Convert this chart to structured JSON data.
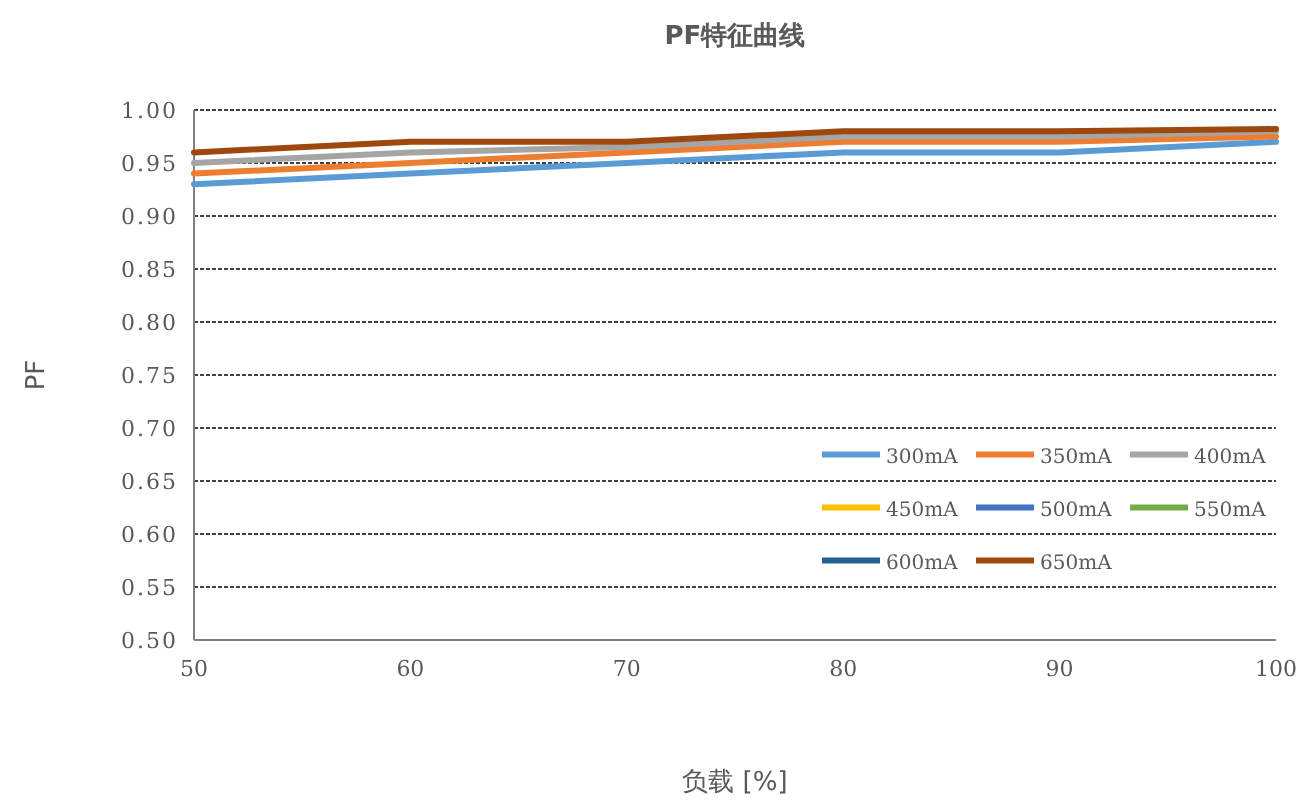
{
  "chart_data": {
    "type": "line",
    "title": "PF特征曲线",
    "xlabel": "负载 [%]",
    "ylabel": "PF",
    "x": [
      50,
      60,
      70,
      80,
      90,
      100
    ],
    "series": [
      {
        "name": "300mA",
        "color": "#5b9bd5",
        "values": [
          0.93,
          0.94,
          0.95,
          0.96,
          0.96,
          0.97
        ]
      },
      {
        "name": "350mA",
        "color": "#ed7d31",
        "values": [
          0.94,
          0.95,
          0.96,
          0.97,
          0.97,
          0.975
        ]
      },
      {
        "name": "400mA",
        "color": "#a5a5a5",
        "values": [
          0.95,
          0.96,
          0.965,
          0.975,
          0.975,
          0.98
        ]
      },
      {
        "name": "450mA",
        "color": "#ffc000",
        "values": [
          null,
          null,
          null,
          null,
          null,
          null
        ]
      },
      {
        "name": "500mA",
        "color": "#4472c4",
        "values": [
          null,
          null,
          null,
          null,
          null,
          null
        ]
      },
      {
        "name": "550mA",
        "color": "#70ad47",
        "values": [
          null,
          null,
          null,
          null,
          null,
          null
        ]
      },
      {
        "name": "600mA",
        "color": "#255e91",
        "values": [
          null,
          null,
          null,
          null,
          null,
          null
        ]
      },
      {
        "name": "650mA",
        "color": "#9e480e",
        "values": [
          0.96,
          0.97,
          0.97,
          0.98,
          0.98,
          0.982
        ]
      }
    ],
    "xlim": [
      50,
      100
    ],
    "ylim": [
      0.5,
      1.0
    ],
    "xticks": [
      50,
      60,
      70,
      80,
      90,
      100
    ],
    "yticks": [
      {
        "value": 0.5,
        "label": "0.50"
      },
      {
        "value": 0.55,
        "label": "0.55"
      },
      {
        "value": 0.6,
        "label": "0.60"
      },
      {
        "value": 0.65,
        "label": "0.65"
      },
      {
        "value": 0.7,
        "label": "0.70"
      },
      {
        "value": 0.75,
        "label": "0.75"
      },
      {
        "value": 0.8,
        "label": "0.80"
      },
      {
        "value": 0.85,
        "label": "0.85"
      },
      {
        "value": 0.9,
        "label": "0.90"
      },
      {
        "value": 0.95,
        "label": "0.95"
      },
      {
        "value": 1.0,
        "label": "1.00"
      }
    ],
    "grid": "y",
    "legend": "bottom right"
  }
}
